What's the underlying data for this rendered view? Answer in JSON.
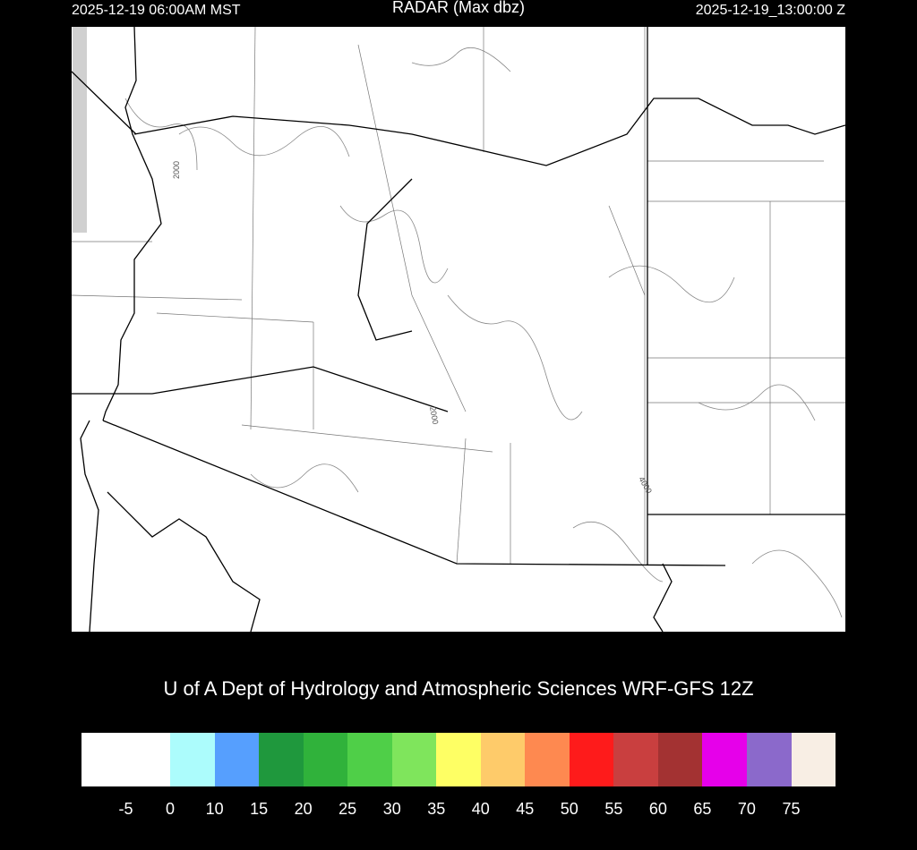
{
  "header": {
    "local_time": "2025-12-19 06:00AM MST",
    "title": "RADAR (Max dbz)",
    "utc_time": "2025-12-19_13:00:00 Z"
  },
  "map": {
    "contour_labels": [
      "2000",
      "2000",
      "4000"
    ],
    "radar_echoes": "none"
  },
  "credit": "U of A Dept of Hydrology and Atmospheric Sciences WRF-GFS 12Z",
  "colorbar": {
    "colors": [
      "#ffffff",
      "#ffffff",
      "#acfcfc",
      "#569ffe",
      "#1f983d",
      "#30b23b",
      "#4fcf48",
      "#7fe55c",
      "#feff64",
      "#fecb6a",
      "#fe8950",
      "#fe1b1b",
      "#c93f3f",
      "#a33232",
      "#e600ea",
      "#8b69cb",
      "#f8eee4"
    ],
    "labels": [
      "-5",
      "0",
      "10",
      "15",
      "20",
      "25",
      "30",
      "35",
      "40",
      "45",
      "50",
      "55",
      "60",
      "65",
      "70",
      "75"
    ]
  }
}
